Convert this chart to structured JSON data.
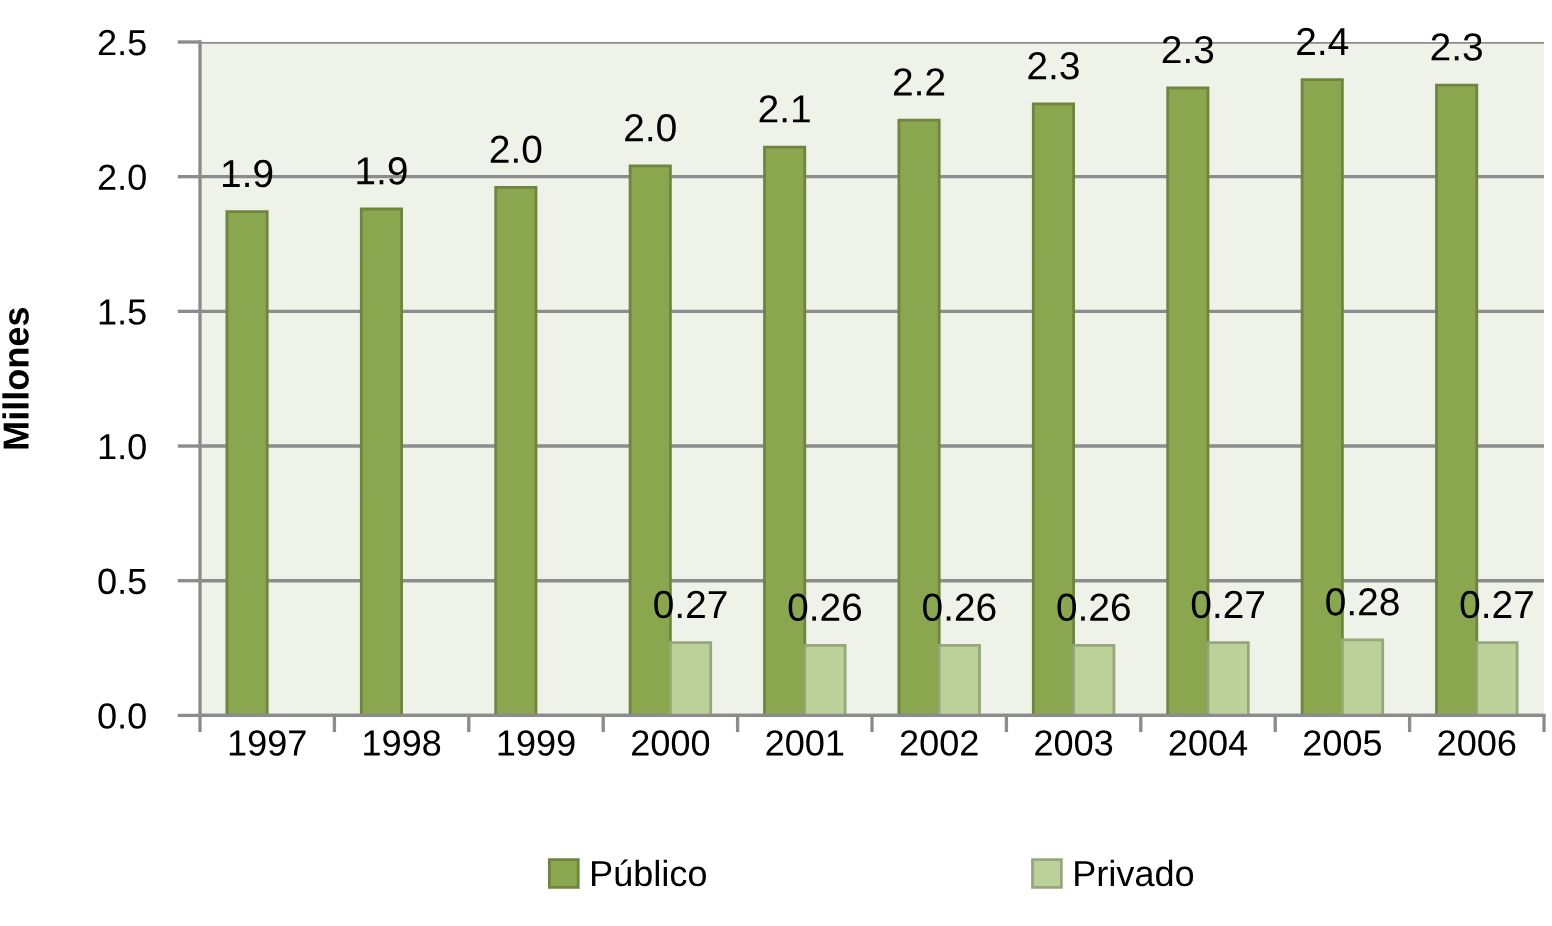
{
  "chart_data": {
    "type": "bar",
    "ylabel": "Millones",
    "categories": [
      "1997",
      "1998",
      "1999",
      "2000",
      "2001",
      "2002",
      "2003",
      "2004",
      "2005",
      "2006"
    ],
    "series": [
      {
        "name": "Público",
        "color": "#8aa64e",
        "values": [
          1.87,
          1.88,
          1.96,
          2.04,
          2.11,
          2.21,
          2.27,
          2.33,
          2.36,
          2.34
        ],
        "value_labels": [
          "1.9",
          "1.9",
          "2.0",
          "2.0",
          "2.1",
          "2.2",
          "2.3",
          "2.3",
          "2.4",
          "2.3"
        ]
      },
      {
        "name": "Privado",
        "color": "#bcd19a",
        "values": [
          null,
          null,
          null,
          0.27,
          0.26,
          0.26,
          0.26,
          0.27,
          0.28,
          0.27
        ],
        "value_labels": [
          null,
          null,
          null,
          "0.27",
          "0.26",
          "0.26",
          "0.26",
          "0.27",
          "0.28",
          "0.27"
        ]
      }
    ],
    "ylim": [
      0,
      2.5
    ],
    "yticks": [
      {
        "value": 0,
        "label": "0.0"
      },
      {
        "value": 0.5,
        "label": "0.5"
      },
      {
        "value": 1,
        "label": "1.0"
      },
      {
        "value": 1.5,
        "label": "1.5"
      },
      {
        "value": 2,
        "label": "2.0"
      },
      {
        "value": 2.5,
        "label": "2.5"
      }
    ],
    "grid": "y",
    "legend": "bottom"
  }
}
